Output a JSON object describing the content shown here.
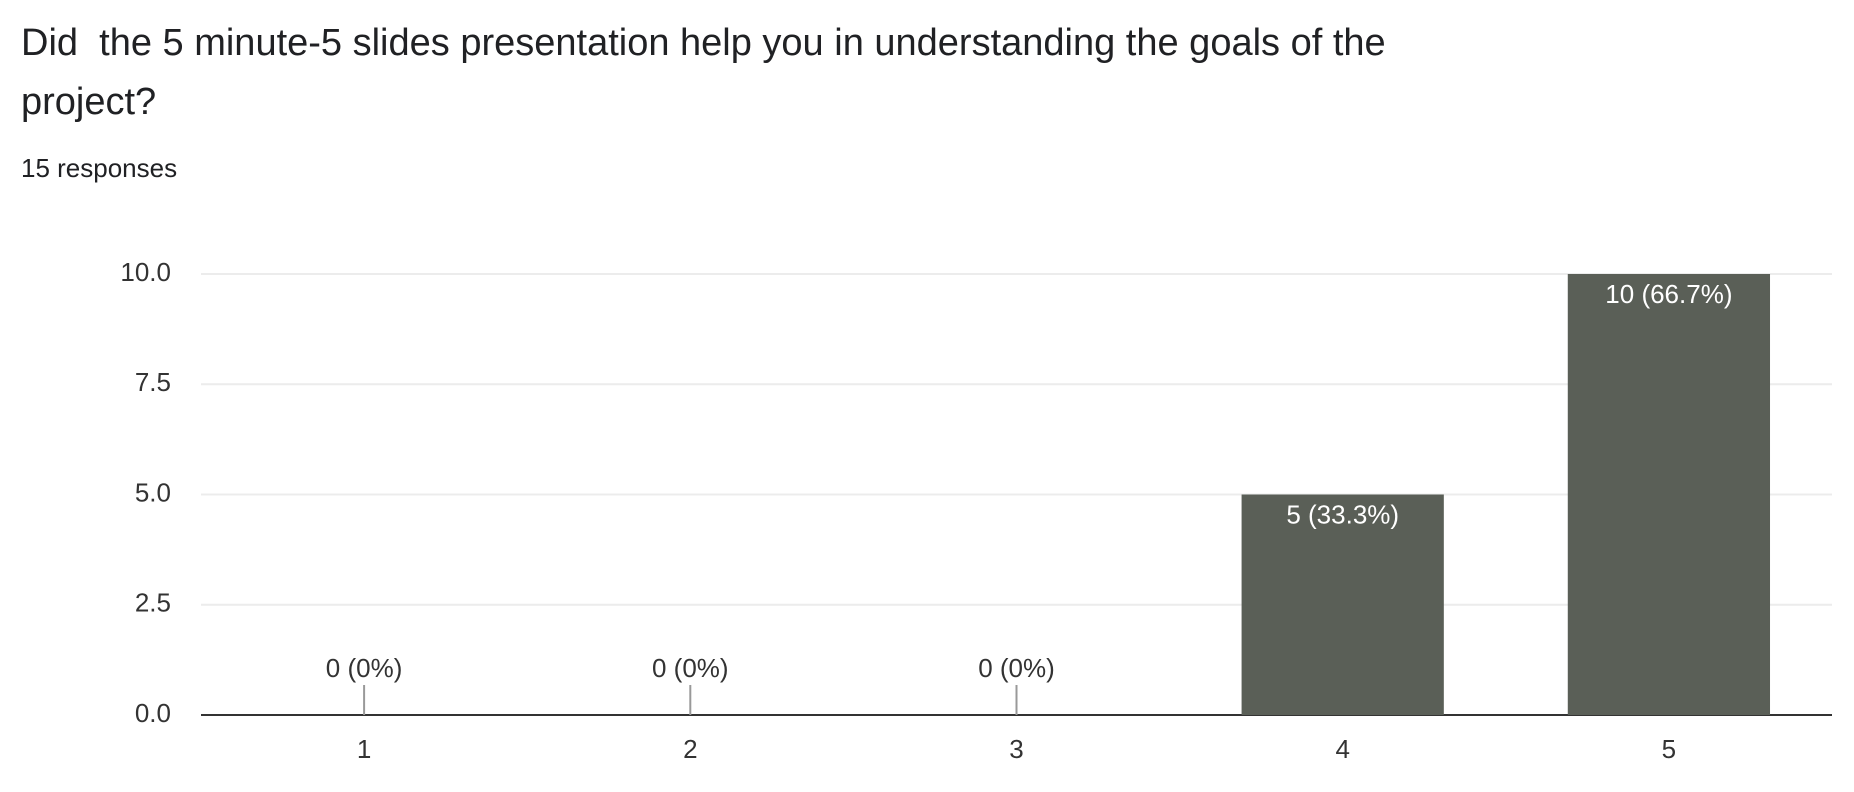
{
  "chart_data": {
    "type": "bar",
    "title": "Did  the 5 minute-5 slides presentation help you in understanding the goals of the project?",
    "subtitle": "15 responses",
    "categories": [
      "1",
      "2",
      "3",
      "4",
      "5"
    ],
    "values": [
      0,
      0,
      0,
      5,
      10
    ],
    "value_labels": [
      "0 (0%)",
      "0 (0%)",
      "0 (0%)",
      "5 (33.3%)",
      "10 (66.7%)"
    ],
    "color": "#5a5f57",
    "ylim": [
      0,
      10
    ],
    "yticks": [
      {
        "value": 0,
        "label": "0.0"
      },
      {
        "value": 2.5,
        "label": "2.5"
      },
      {
        "value": 5,
        "label": "5.0"
      },
      {
        "value": 7.5,
        "label": "7.5"
      },
      {
        "value": 10,
        "label": "10.0"
      }
    ],
    "grid": true
  }
}
